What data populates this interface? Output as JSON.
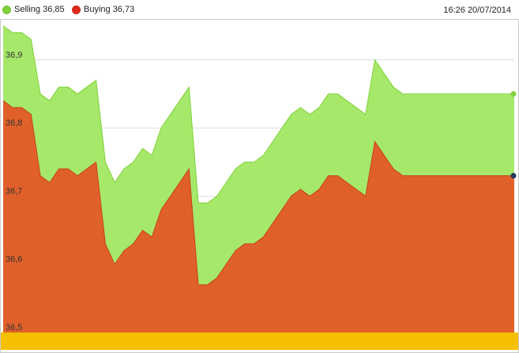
{
  "legend": {
    "selling_label": "Selling 36,85",
    "buying_label": "Buying 36,73"
  },
  "timestamp": "16:26 20/07/2014",
  "colors": {
    "selling": "#a6e86a",
    "selling_line": "#7fd13b",
    "selling_dot": "#7fd13b",
    "buying": "#e0602a",
    "buying_line": "#c8421a",
    "buying_dot": "#dd2a1a",
    "bottom_band": "#f5c000",
    "grid": "#dddddd",
    "end_marker": "#1f3a5a"
  },
  "chart_data": {
    "type": "area",
    "title": "",
    "xlabel": "",
    "ylabel": "",
    "ylim": [
      36.5,
      36.96
    ],
    "yticks": [
      36.9,
      36.8,
      36.7,
      36.6,
      36.5
    ],
    "ytick_labels": [
      "36,9",
      "36,8",
      "36,7",
      "36,6",
      "36,5"
    ],
    "grid": true,
    "legend_position": "top-left",
    "x": [
      0,
      1,
      2,
      3,
      4,
      5,
      6,
      7,
      8,
      9,
      10,
      11,
      12,
      13,
      14,
      15,
      16,
      17,
      18,
      19,
      20,
      21,
      22,
      23,
      24,
      25,
      26,
      27,
      28,
      29,
      30,
      31,
      32,
      33,
      34,
      35,
      36,
      37,
      38,
      39,
      40,
      41,
      42,
      43,
      44,
      45,
      46,
      47,
      48,
      49,
      50,
      51,
      52,
      53,
      54,
      55
    ],
    "series": [
      {
        "name": "Selling",
        "values": [
          36.95,
          36.94,
          36.94,
          36.93,
          36.85,
          36.84,
          36.86,
          36.86,
          36.85,
          36.86,
          36.87,
          36.75,
          36.72,
          36.74,
          36.75,
          36.77,
          36.76,
          36.8,
          36.82,
          36.84,
          36.86,
          36.69,
          36.69,
          36.7,
          36.72,
          36.74,
          36.75,
          36.75,
          36.76,
          36.78,
          36.8,
          36.82,
          36.83,
          36.82,
          36.83,
          36.85,
          36.85,
          36.84,
          36.83,
          36.82,
          36.9,
          36.88,
          36.86,
          36.85,
          36.85,
          36.85,
          36.85,
          36.85,
          36.85,
          36.85,
          36.85,
          36.85,
          36.85,
          36.85,
          36.85,
          36.85
        ]
      },
      {
        "name": "Buying",
        "values": [
          36.84,
          36.83,
          36.83,
          36.82,
          36.73,
          36.72,
          36.74,
          36.74,
          36.73,
          36.74,
          36.75,
          36.63,
          36.6,
          36.62,
          36.63,
          36.65,
          36.64,
          36.68,
          36.7,
          36.72,
          36.74,
          36.57,
          36.57,
          36.58,
          36.6,
          36.62,
          36.63,
          36.63,
          36.64,
          36.66,
          36.68,
          36.7,
          36.71,
          36.7,
          36.71,
          36.73,
          36.73,
          36.72,
          36.71,
          36.7,
          36.78,
          36.76,
          36.74,
          36.73,
          36.73,
          36.73,
          36.73,
          36.73,
          36.73,
          36.73,
          36.73,
          36.73,
          36.73,
          36.73,
          36.73,
          36.73
        ]
      }
    ]
  }
}
